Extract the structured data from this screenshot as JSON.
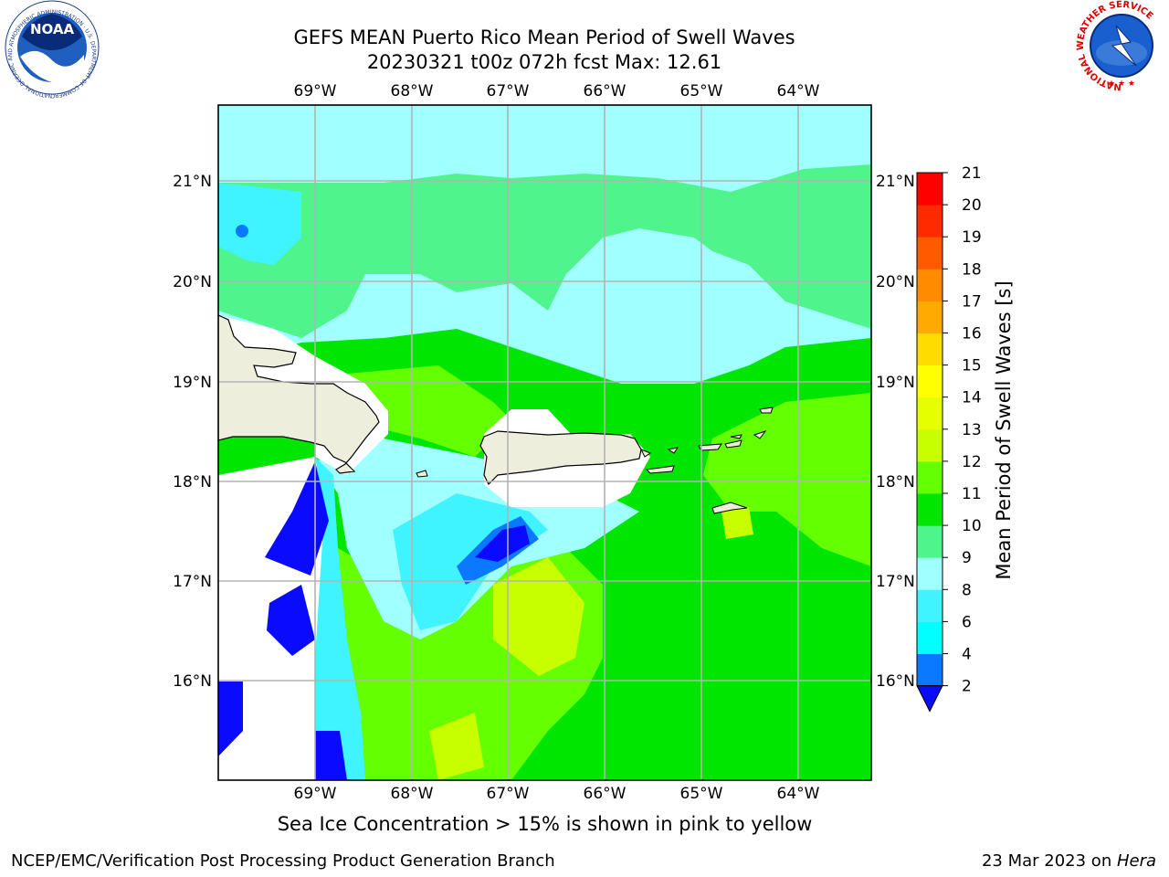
{
  "header": {
    "title_line1": "GEFS MEAN Puerto Rico Mean Period of Swell Waves",
    "title_line2": "20230321 t00z 072h fcst   Max: 12.61"
  },
  "logos": {
    "noaa_text": "NOAA",
    "noaa_ring_text": "NATIONAL OCEANIC AND ATMOSPHERIC ADMINISTRATION · U.S. DEPARTMENT OF COMMERCE",
    "nws_ring_text": "NATIONAL WEATHER SERVICE"
  },
  "map": {
    "lon_labels": [
      "69°W",
      "68°W",
      "67°W",
      "66°W",
      "65°W",
      "64°W"
    ],
    "lat_labels": [
      "21°N",
      "20°N",
      "19°N",
      "18°N",
      "17°N",
      "16°N"
    ],
    "caption": "Sea Ice Concentration > 15% is shown in pink to yellow"
  },
  "colorbar": {
    "label": "Mean Period of Swell Waves [s]",
    "ticks": [
      "2",
      "4",
      "6",
      "8",
      "9",
      "10",
      "11",
      "12",
      "13",
      "14",
      "15",
      "16",
      "17",
      "18",
      "19",
      "20",
      "21"
    ],
    "colors": [
      "#0a0aff",
      "#0a78ff",
      "#00ffff",
      "#40f4ff",
      "#a0ffff",
      "#50f48c",
      "#00e600",
      "#64ff00",
      "#c8ff00",
      "#e6ff00",
      "#ffff00",
      "#ffdc00",
      "#ffaa00",
      "#ff8c00",
      "#ff5a00",
      "#ff2a00",
      "#ff0000"
    ]
  },
  "footer": {
    "left": "NCEP/EMC/Verification Post Processing Product Generation Branch",
    "right_prefix": "23 Mar 2023 on ",
    "right_host": "Hera"
  }
}
